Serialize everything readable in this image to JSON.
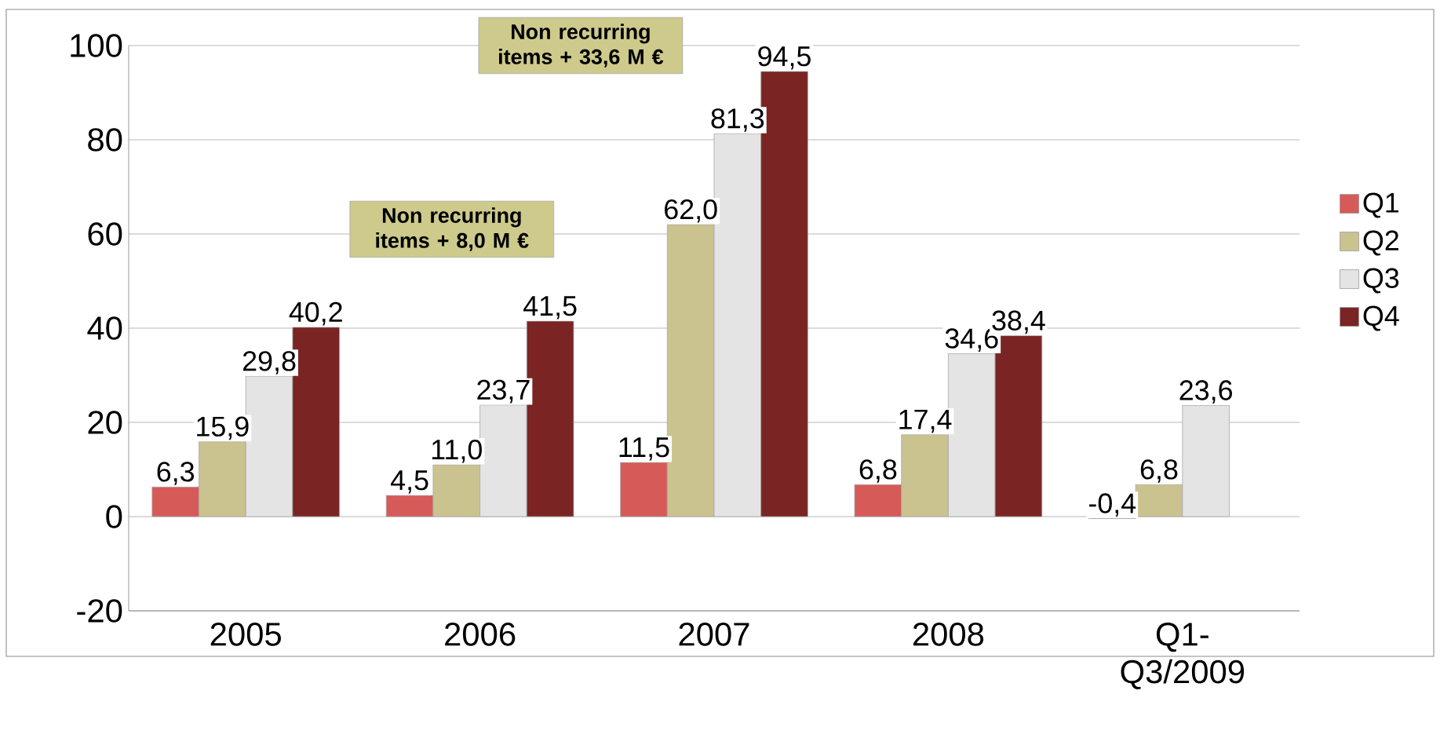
{
  "chart_data": {
    "type": "bar",
    "categories": [
      "2005",
      "2006",
      "2007",
      "2008",
      "Q1-Q3/2009"
    ],
    "series": [
      {
        "name": "Q1",
        "color": "#d65a57",
        "values": [
          6.3,
          4.5,
          11.5,
          6.8,
          -0.4
        ],
        "value_labels": [
          "6,3",
          "4,5",
          "11,5",
          "6,8",
          "-0,4"
        ]
      },
      {
        "name": "Q2",
        "color": "#cbc38f",
        "values": [
          15.9,
          11.0,
          62.0,
          17.4,
          6.8
        ],
        "value_labels": [
          "15,9",
          "11,0",
          "62,0",
          "17,4",
          "6,8"
        ]
      },
      {
        "name": "Q3",
        "color": "#e4e4e4",
        "values": [
          29.8,
          23.7,
          81.3,
          34.6,
          23.6
        ],
        "value_labels": [
          "29,8",
          "23,7",
          "81,3",
          "34,6",
          "23,6"
        ]
      },
      {
        "name": "Q4",
        "color": "#7a2424",
        "values": [
          40.2,
          41.5,
          94.5,
          38.4,
          null
        ],
        "value_labels": [
          "40,2",
          "41,5",
          "94,5",
          "38,4",
          null
        ]
      }
    ],
    "ylim": [
      -20,
      100
    ],
    "yticks": [
      -20,
      0,
      20,
      40,
      60,
      80,
      100
    ],
    "grid": "y",
    "legend": "right",
    "annotations": [
      "Non recurring items + 8,0 M €",
      "Non recurring items + 33,6 M €"
    ]
  }
}
